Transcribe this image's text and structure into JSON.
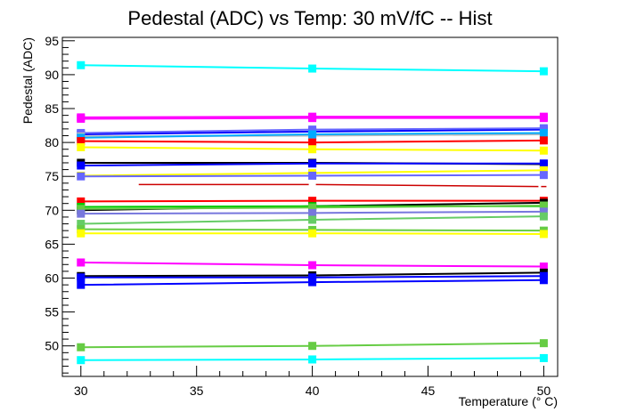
{
  "chart_data": {
    "type": "line",
    "title": "Pedestal (ADC) vs Temp: 30 mV/fC -- Hist",
    "xlabel": "Temperature (° C)",
    "ylabel": "Pedestal (ADC)",
    "xlim": [
      29.2,
      50.6
    ],
    "ylim": [
      45.5,
      95.5
    ],
    "x": [
      30,
      40,
      50
    ],
    "xticks": [
      30,
      35,
      40,
      45,
      50
    ],
    "xtick_labels": [
      "30",
      "35",
      "40",
      "45",
      "50"
    ],
    "yticks": [
      50,
      55,
      60,
      65,
      70,
      75,
      80,
      85,
      90,
      95
    ],
    "ytick_labels": [
      "50",
      "55",
      "60",
      "65",
      "70",
      "75",
      "80",
      "85",
      "90",
      "95"
    ],
    "grid": false,
    "legend": "none",
    "series": [
      {
        "color": "#00ffff",
        "values": [
          91.4,
          90.9,
          90.5
        ]
      },
      {
        "color": "#ff00ff",
        "values": [
          83.7,
          83.8,
          83.8
        ]
      },
      {
        "color": "#ff00ff",
        "values": [
          83.5,
          83.6,
          83.6
        ]
      },
      {
        "color": "#0000ff",
        "values": [
          81.2,
          81.6,
          81.9
        ]
      },
      {
        "color": "#6666ff",
        "values": [
          81.4,
          81.9,
          82.1
        ]
      },
      {
        "color": "#bbbbbb",
        "values": [
          80.9,
          81.0,
          81.2
        ]
      },
      {
        "color": "#00aaff",
        "values": [
          80.7,
          81.2,
          81.4
        ]
      },
      {
        "color": "#ff0000",
        "values": [
          80.2,
          80.0,
          80.3
        ]
      },
      {
        "color": "#ffff00",
        "values": [
          79.3,
          79.0,
          78.8
        ]
      },
      {
        "color": "#000000",
        "values": [
          77.0,
          77.0,
          76.8
        ]
      },
      {
        "color": "#0000ff",
        "values": [
          76.6,
          76.9,
          76.9
        ]
      },
      {
        "color": "#ffff00",
        "values": [
          75.1,
          75.5,
          75.9
        ]
      },
      {
        "color": "#6666ff",
        "values": [
          75.0,
          75.1,
          75.2
        ]
      },
      {
        "color": "#cc0000",
        "values": [
          null,
          73.8,
          73.5
        ],
        "dashed": true
      },
      {
        "color": "#ff0000",
        "values": [
          71.3,
          71.4,
          71.4
        ]
      },
      {
        "color": "#000000",
        "values": [
          70.0,
          70.6,
          71.1
        ]
      },
      {
        "color": "#00cc00",
        "values": [
          70.5,
          70.6,
          70.6
        ]
      },
      {
        "color": "#66cc44",
        "values": [
          70.2,
          70.4,
          70.7
        ]
      },
      {
        "color": "#7777dd",
        "values": [
          69.5,
          69.6,
          69.8
        ]
      },
      {
        "color": "#66cc66",
        "values": [
          68.0,
          68.6,
          69.1
        ]
      },
      {
        "color": "#66cc44",
        "values": [
          67.2,
          67.1,
          67.0
        ]
      },
      {
        "color": "#ffff00",
        "values": [
          66.6,
          66.6,
          66.5
        ]
      },
      {
        "color": "#ff00ff",
        "values": [
          62.3,
          61.9,
          61.7
        ]
      },
      {
        "color": "#000000",
        "values": [
          60.3,
          60.4,
          60.8
        ]
      },
      {
        "color": "#0000ff",
        "values": [
          60.1,
          60.1,
          60.3
        ]
      },
      {
        "color": "#0000ff",
        "values": [
          59.0,
          59.4,
          59.7
        ]
      },
      {
        "color": "#66cc44",
        "values": [
          49.8,
          50.0,
          50.4
        ]
      },
      {
        "color": "#00ffff",
        "values": [
          47.9,
          48.0,
          48.2
        ]
      }
    ]
  }
}
